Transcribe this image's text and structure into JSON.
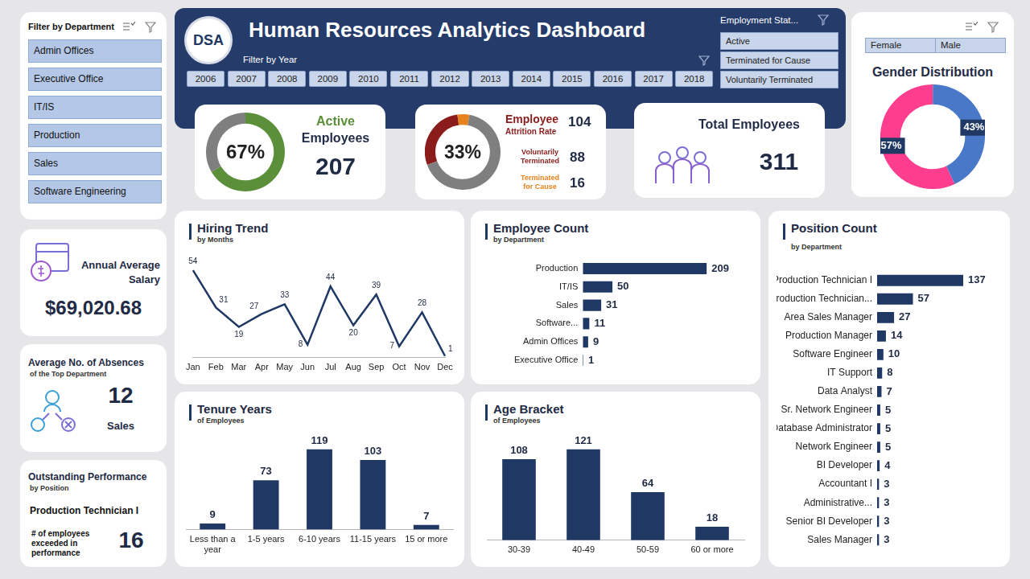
{
  "header": {
    "logo": "DSA",
    "title": "Human Resources Analytics Dashboard",
    "year_filter": {
      "title": "Filter by Year",
      "items": [
        "2006",
        "2007",
        "2008",
        "2009",
        "2010",
        "2011",
        "2012",
        "2013",
        "2014",
        "2015",
        "2016",
        "2017",
        "2018"
      ]
    }
  },
  "department_filter": {
    "title": "Filter by Department",
    "items": [
      "Admin Offices",
      "Executive Office",
      "IT/IS",
      "Production",
      "Sales",
      "Software Engineering"
    ]
  },
  "status_filter": {
    "title": "Employment Stat...",
    "items": [
      "Active",
      "Terminated for Cause",
      "Voluntarily Terminated"
    ]
  },
  "total_employees": {
    "title": "Total Employees",
    "value": 311
  },
  "salary": {
    "title": "Annual Average Salary",
    "value": "$69,020.68"
  },
  "absences": {
    "title": "Average No. of Absences",
    "subtitle": "of the Top Department",
    "value": 12,
    "department": "Sales"
  },
  "performance": {
    "title": "Outstanding Performance",
    "subtitle": "by Position",
    "position": "Production Technician I",
    "label": "# of employees exceeded in performance",
    "value": 16
  },
  "chart_data": [
    {
      "type": "doughnut",
      "title": "Active Employees",
      "annotation": "67%",
      "values": [
        207,
        104
      ],
      "colors": [
        "#5b8f3a",
        "#7f7f7f"
      ]
    },
    {
      "type": "doughnut",
      "title": "Employee Attrition Rate",
      "annotation": "33%",
      "total": 104,
      "categories": [
        "Voluntarily Terminated",
        "Terminated for Cause",
        null
      ],
      "values": [
        88,
        16,
        207
      ],
      "colors": [
        "#8b1c1c",
        "#e8821e",
        "#7f7f7f"
      ]
    },
    {
      "type": "doughnut",
      "title": "Gender Distribution",
      "categories": [
        "Female",
        "Male"
      ],
      "values": [
        57,
        43
      ],
      "value_labels": [
        "57%",
        "43%"
      ],
      "colors": [
        "#ff3d8f",
        "#4a78c8"
      ],
      "data_labels": true
    },
    {
      "type": "line",
      "title": "Hiring Trend",
      "subtitle": "by Months",
      "categories": [
        "Jan",
        "Feb",
        "Mar",
        "Apr",
        "May",
        "Jun",
        "Jul",
        "Aug",
        "Sep",
        "Oct",
        "Nov",
        "Dec"
      ],
      "values": [
        54,
        31,
        19,
        27,
        33,
        8,
        44,
        20,
        39,
        7,
        28,
        1
      ],
      "color": "#1f3864",
      "ylim": [
        0,
        60
      ],
      "grid": false,
      "data_labels": true,
      "tick_labels": "x",
      "marker": "none",
      "line_style": "solid"
    },
    {
      "type": "bar",
      "orientation": "horizontal",
      "title": "Employee Count",
      "subtitle": "by Department",
      "categories": [
        "Production",
        "IT/IS",
        "Sales",
        "Software...",
        "Admin Offices",
        "Executive Office"
      ],
      "values": [
        209,
        50,
        31,
        11,
        9,
        1
      ],
      "color": "#1f3864",
      "xlim": [
        0,
        240
      ],
      "grid": false,
      "data_labels": true,
      "tick_labels": "y"
    },
    {
      "type": "bar",
      "title": "Tenure Years",
      "subtitle": "of Employees",
      "categories": [
        "Less than a year",
        "1-5 years",
        "6-10 years",
        "11-15 years",
        "15 or more"
      ],
      "values": [
        9,
        73,
        119,
        103,
        7
      ],
      "color": "#1f3864",
      "ylim": [
        0,
        140
      ],
      "grid": false,
      "data_labels": true,
      "tick_labels": "x"
    },
    {
      "type": "bar",
      "title": "Age Bracket",
      "subtitle": "of Employees",
      "categories": [
        "30-39",
        "40-49",
        "50-59",
        "60 or more"
      ],
      "values": [
        108,
        121,
        64,
        18
      ],
      "color": "#1f3864",
      "ylim": [
        0,
        140
      ],
      "grid": false,
      "data_labels": true,
      "tick_labels": "x"
    },
    {
      "type": "bar",
      "orientation": "horizontal",
      "title": "Position Count",
      "subtitle": "by Department",
      "categories": [
        "Production Technician I",
        "Production Technician...",
        "Area Sales Manager",
        "Production Manager",
        "Software Engineer",
        "IT Support",
        "Data Analyst",
        "Sr. Network Engineer",
        "Database Administrator",
        "Network Engineer",
        "BI Developer",
        "Accountant I",
        "Administrative...",
        "Senior BI Developer",
        "Sales Manager"
      ],
      "values": [
        137,
        57,
        27,
        14,
        10,
        8,
        7,
        5,
        5,
        5,
        4,
        3,
        3,
        3,
        3
      ],
      "color": "#1f3864",
      "xlim": [
        0,
        160
      ],
      "grid": false,
      "data_labels": true,
      "tick_labels": "y"
    }
  ]
}
